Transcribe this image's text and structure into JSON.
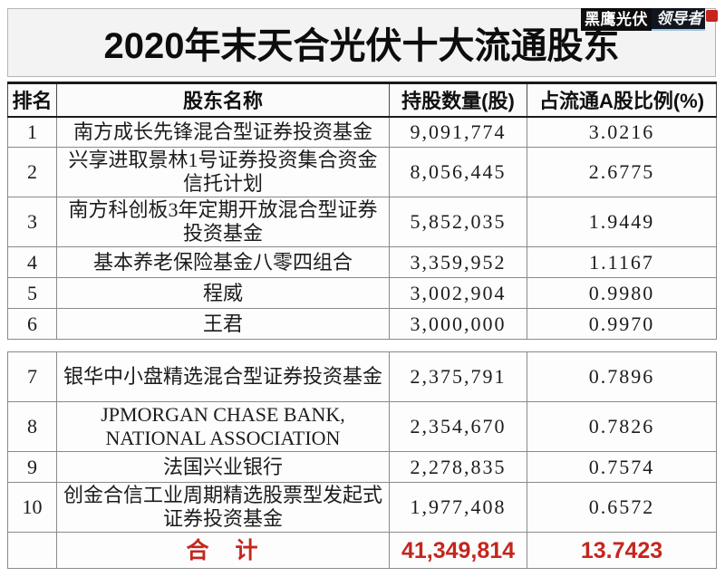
{
  "logo": {
    "brand": "黑鹰光伏",
    "tagline": "领导者"
  },
  "header": {
    "title": "2020年末天合光伏十大流通股东"
  },
  "table": {
    "columns": [
      "排名",
      "股东名称",
      "持股数量(股)",
      "占流通A股比例(%)"
    ],
    "rows": [
      {
        "rank": "1",
        "name": "南方成长先锋混合型证券投资基金",
        "shares": "9,091,774",
        "pct": "3.0216"
      },
      {
        "rank": "2",
        "name": "兴享进取景林1号证券投资集合资金信托计划",
        "shares": "8,056,445",
        "pct": "2.6775"
      },
      {
        "rank": "3",
        "name": "南方科创板3年定期开放混合型证券投资基金",
        "shares": "5,852,035",
        "pct": "1.9449"
      },
      {
        "rank": "4",
        "name": "基本养老保险基金八零四组合",
        "shares": "3,359,952",
        "pct": "1.1167"
      },
      {
        "rank": "5",
        "name": "程威",
        "shares": "3,002,904",
        "pct": "0.9980"
      },
      {
        "rank": "6",
        "name": "王君",
        "shares": "3,000,000",
        "pct": "0.9970"
      },
      {
        "rank": "7",
        "name": "银华中小盘精选混合型证券投资基金",
        "shares": "2,375,791",
        "pct": "0.7896"
      },
      {
        "rank": "8",
        "name": "JPMORGAN CHASE BANK, NATIONAL ASSOCIATION",
        "shares": "2,354,670",
        "pct": "0.7826"
      },
      {
        "rank": "9",
        "name": "法国兴业银行",
        "shares": "2,278,835",
        "pct": "0.7574"
      },
      {
        "rank": "10",
        "name": "创金合信工业周期精选股票型发起式证券投资基金",
        "shares": "1,977,408",
        "pct": "0.6572"
      }
    ],
    "total": {
      "label": "合　计",
      "shares": "41,349,814",
      "pct": "13.7423"
    }
  },
  "chart_data": {
    "type": "table",
    "title": "2020年末天合光伏十大流通股东",
    "columns": [
      "排名",
      "股东名称",
      "持股数量(股)",
      "占流通A股比例(%)"
    ],
    "rows": [
      [
        1,
        "南方成长先锋混合型证券投资基金",
        9091774,
        3.0216
      ],
      [
        2,
        "兴享进取景林1号证券投资集合资金信托计划",
        8056445,
        2.6775
      ],
      [
        3,
        "南方科创板3年定期开放混合型证券投资基金",
        5852035,
        1.9449
      ],
      [
        4,
        "基本养老保险基金八零四组合",
        3359952,
        1.1167
      ],
      [
        5,
        "程威",
        3002904,
        0.998
      ],
      [
        6,
        "王君",
        3000000,
        0.997
      ],
      [
        7,
        "银华中小盘精选混合型证券投资基金",
        2375791,
        0.7896
      ],
      [
        8,
        "JPMORGAN CHASE BANK, NATIONAL ASSOCIATION",
        2354670,
        0.7826
      ],
      [
        9,
        "法国兴业银行",
        2278835,
        0.7574
      ],
      [
        10,
        "创金合信工业周期精选股票型发起式证券投资基金",
        1977408,
        0.6572
      ]
    ],
    "total_row": [
      "合计",
      41349814,
      13.7423
    ]
  },
  "colors": {
    "total_red": "#c4261d",
    "logo_black": "#0d0d0d",
    "badge_red": "#c8231e",
    "border_dark": "#1a1a1a",
    "border_gray": "#8a8a8a",
    "title_bg": "#f3f3f3"
  }
}
